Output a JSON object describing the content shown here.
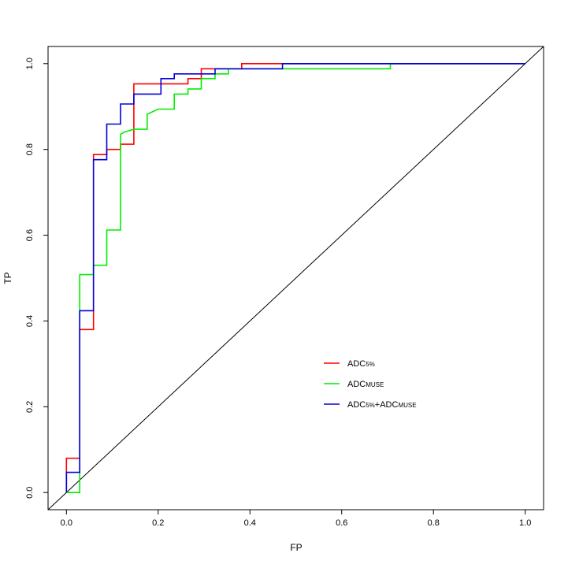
{
  "chart_data": {
    "type": "line",
    "xlabel": "FP",
    "ylabel": "TP",
    "xlim": [
      -0.04,
      1.04
    ],
    "ylim": [
      -0.04,
      1.04
    ],
    "x_ticks": [
      0.0,
      0.2,
      0.4,
      0.6,
      0.8,
      1.0
    ],
    "x_tick_labels": [
      "0.0",
      "0.2",
      "0.4",
      "0.6",
      "0.8",
      "1.0"
    ],
    "y_ticks": [
      0.0,
      0.2,
      0.4,
      0.6,
      0.8,
      1.0
    ],
    "y_tick_labels": [
      "0.0",
      "0.2",
      "0.4",
      "0.6",
      "0.8",
      "1.0"
    ],
    "legend_position": "lower-right",
    "diagonal": {
      "name": "reference",
      "color": "#000000",
      "x": [
        0,
        1
      ],
      "y": [
        0,
        1
      ]
    },
    "series": [
      {
        "name": "ADC5%",
        "legend_main": "ADC",
        "legend_sub": "5%",
        "color": "#ff0000",
        "x": [
          0,
          0,
          0.029,
          0.029,
          0.059,
          0.059,
          0.088,
          0.088,
          0.118,
          0.118,
          0.147,
          0.147,
          0.265,
          0.265,
          0.294,
          0.294,
          0.382,
          0.382,
          1.0
        ],
        "y": [
          0,
          0.08,
          0.08,
          0.38,
          0.38,
          0.788,
          0.788,
          0.8,
          0.8,
          0.812,
          0.812,
          0.953,
          0.953,
          0.965,
          0.965,
          0.988,
          0.988,
          1.0,
          1.0
        ]
      },
      {
        "name": "ADCMUSE",
        "legend_main": "ADC",
        "legend_sub": "MUSE",
        "color": "#00ee00",
        "x": [
          0,
          0.029,
          0.029,
          0.059,
          0.059,
          0.088,
          0.088,
          0.118,
          0.118,
          0.125,
          0.147,
          0.176,
          0.176,
          0.2,
          0.235,
          0.235,
          0.265,
          0.265,
          0.294,
          0.294,
          0.324,
          0.324,
          0.353,
          0.353,
          0.706,
          0.706,
          1.0
        ],
        "y": [
          0,
          0,
          0.508,
          0.508,
          0.53,
          0.53,
          0.612,
          0.612,
          0.835,
          0.84,
          0.847,
          0.847,
          0.882,
          0.894,
          0.894,
          0.929,
          0.929,
          0.941,
          0.941,
          0.965,
          0.965,
          0.976,
          0.976,
          0.988,
          0.988,
          1.0,
          1.0
        ]
      },
      {
        "name": "ADC5%+ADCMUSE",
        "legend_main_1": "ADC",
        "legend_sub_1": "5%",
        "legend_main_2": "+ADC",
        "legend_sub_2": "MUSE",
        "color": "#0000dd",
        "x": [
          0,
          0,
          0.029,
          0.029,
          0.059,
          0.059,
          0.088,
          0.088,
          0.118,
          0.118,
          0.147,
          0.147,
          0.206,
          0.206,
          0.235,
          0.235,
          0.324,
          0.324,
          0.471,
          0.471,
          1.0
        ],
        "y": [
          0,
          0.047,
          0.047,
          0.424,
          0.424,
          0.776,
          0.776,
          0.859,
          0.859,
          0.906,
          0.906,
          0.929,
          0.929,
          0.965,
          0.965,
          0.976,
          0.976,
          0.988,
          0.988,
          1.0,
          1.0
        ]
      }
    ]
  }
}
